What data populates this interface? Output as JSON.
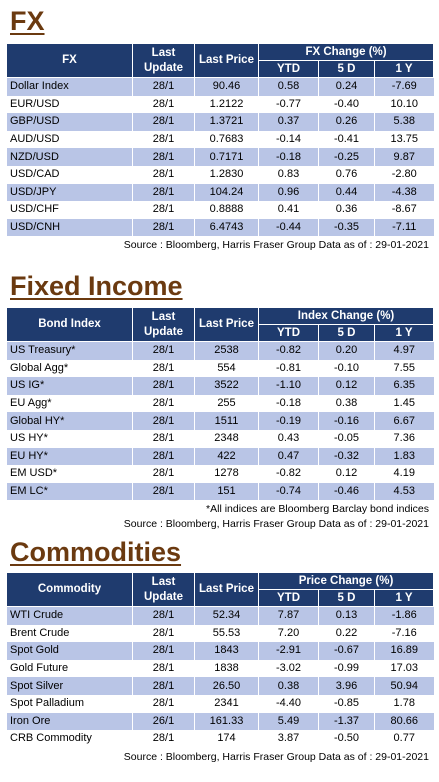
{
  "fx": {
    "title": "FX",
    "headers": {
      "name": "FX",
      "last_update": "Last Update",
      "last_price": "Last Price",
      "change_group": "FX Change (%)",
      "ytd": "YTD",
      "d5": "5 D",
      "y1": "1 Y"
    },
    "rows": [
      {
        "name": "Dollar Index",
        "update": "28/1",
        "price": "90.46",
        "ytd": "0.58",
        "d5": "0.24",
        "y1": "-7.69"
      },
      {
        "name": "EUR/USD",
        "update": "28/1",
        "price": "1.2122",
        "ytd": "-0.77",
        "d5": "-0.40",
        "y1": "10.10"
      },
      {
        "name": "GBP/USD",
        "update": "28/1",
        "price": "1.3721",
        "ytd": "0.37",
        "d5": "0.26",
        "y1": "5.38"
      },
      {
        "name": "AUD/USD",
        "update": "28/1",
        "price": "0.7683",
        "ytd": "-0.14",
        "d5": "-0.41",
        "y1": "13.75"
      },
      {
        "name": "NZD/USD",
        "update": "28/1",
        "price": "0.7171",
        "ytd": "-0.18",
        "d5": "-0.25",
        "y1": "9.87"
      },
      {
        "name": "USD/CAD",
        "update": "28/1",
        "price": "1.2830",
        "ytd": "0.83",
        "d5": "0.76",
        "y1": "-2.80"
      },
      {
        "name": "USD/JPY",
        "update": "28/1",
        "price": "104.24",
        "ytd": "0.96",
        "d5": "0.44",
        "y1": "-4.38"
      },
      {
        "name": "USD/CHF",
        "update": "28/1",
        "price": "0.8888",
        "ytd": "0.41",
        "d5": "0.36",
        "y1": "-8.67"
      },
      {
        "name": "USD/CNH",
        "update": "28/1",
        "price": "6.4743",
        "ytd": "-0.44",
        "d5": "-0.35",
        "y1": "-7.11"
      }
    ],
    "source": "Source : Bloomberg, Harris Fraser Group Data as of : 29-01-2021"
  },
  "fixed_income": {
    "title": "Fixed Income",
    "headers": {
      "name": "Bond Index",
      "last_update": "Last Update",
      "last_price": "Last Price",
      "change_group": "Index Change (%)",
      "ytd": "YTD",
      "d5": "5 D",
      "y1": "1 Y"
    },
    "rows": [
      {
        "name": "US Treasury*",
        "update": "28/1",
        "price": "2538",
        "ytd": "-0.82",
        "d5": "0.20",
        "y1": "4.97"
      },
      {
        "name": "Global Agg*",
        "update": "28/1",
        "price": "554",
        "ytd": "-0.81",
        "d5": "-0.10",
        "y1": "7.55"
      },
      {
        "name": "US IG*",
        "update": "28/1",
        "price": "3522",
        "ytd": "-1.10",
        "d5": "0.12",
        "y1": "6.35"
      },
      {
        "name": "EU Agg*",
        "update": "28/1",
        "price": "255",
        "ytd": "-0.18",
        "d5": "0.38",
        "y1": "1.45"
      },
      {
        "name": "Global HY*",
        "update": "28/1",
        "price": "1511",
        "ytd": "-0.19",
        "d5": "-0.16",
        "y1": "6.67"
      },
      {
        "name": "US HY*",
        "update": "28/1",
        "price": "2348",
        "ytd": "0.43",
        "d5": "-0.05",
        "y1": "7.36"
      },
      {
        "name": "EU HY*",
        "update": "28/1",
        "price": "422",
        "ytd": "0.47",
        "d5": "-0.32",
        "y1": "1.83"
      },
      {
        "name": "EM USD*",
        "update": "28/1",
        "price": "1278",
        "ytd": "-0.82",
        "d5": "0.12",
        "y1": "4.19"
      },
      {
        "name": "EM LC*",
        "update": "28/1",
        "price": "151",
        "ytd": "-0.74",
        "d5": "-0.46",
        "y1": "4.53"
      }
    ],
    "note": "*All indices are Bloomberg Barclay bond indices",
    "source": "Source : Bloomberg, Harris Fraser Group Data as of : 29-01-2021"
  },
  "commodities": {
    "title": "Commodities",
    "headers": {
      "name": "Commodity",
      "last_update": "Last Update",
      "last_price": "Last Price",
      "change_group": "Price Change (%)",
      "ytd": "YTD",
      "d5": "5 D",
      "y1": "1 Y"
    },
    "rows": [
      {
        "name": "WTI Crude",
        "update": "28/1",
        "price": "52.34",
        "ytd": "7.87",
        "d5": "0.13",
        "y1": "-1.86"
      },
      {
        "name": "Brent Crude",
        "update": "28/1",
        "price": "55.53",
        "ytd": "7.20",
        "d5": "0.22",
        "y1": "-7.16"
      },
      {
        "name": "Spot Gold",
        "update": "28/1",
        "price": "1843",
        "ytd": "-2.91",
        "d5": "-0.67",
        "y1": "16.89"
      },
      {
        "name": "Gold Future",
        "update": "28/1",
        "price": "1838",
        "ytd": "-3.02",
        "d5": "-0.99",
        "y1": "17.03"
      },
      {
        "name": "Spot Silver",
        "update": "28/1",
        "price": "26.50",
        "ytd": "0.38",
        "d5": "3.96",
        "y1": "50.94"
      },
      {
        "name": "Spot Palladium",
        "update": "28/1",
        "price": "2341",
        "ytd": "-4.40",
        "d5": "-0.85",
        "y1": "1.78"
      },
      {
        "name": "Iron Ore",
        "update": "26/1",
        "price": "161.33",
        "ytd": "5.49",
        "d5": "-1.37",
        "y1": "80.66"
      },
      {
        "name": "CRB Commodity",
        "update": "28/1",
        "price": "174",
        "ytd": "3.87",
        "d5": "-0.50",
        "y1": "0.77"
      }
    ],
    "source": "Source : Bloomberg, Harris Fraser Group Data as of : 29-01-2021"
  }
}
